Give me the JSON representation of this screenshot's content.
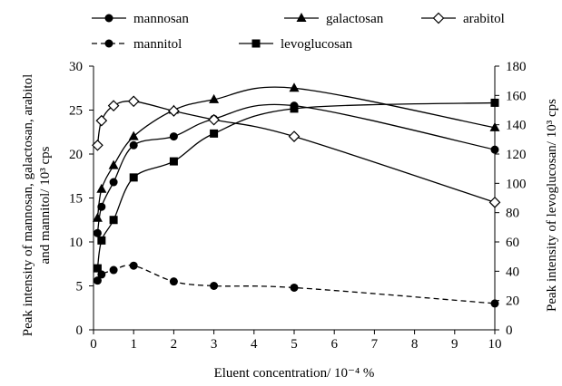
{
  "chart_data": {
    "type": "line",
    "xlabel": "Eluent concentration/ 10⁻⁴ %",
    "ylabel_left": [
      "Peak intensity of mannosan, galactosan, arabitol",
      "and mannitol/ 10³ cps"
    ],
    "ylabel_right": "Peak intensity of levoglucosan/ 10³ cps",
    "xlim": [
      0,
      10
    ],
    "ylim_left": [
      0,
      30
    ],
    "ylim_right": [
      0,
      180
    ],
    "x_ticks": [
      "0",
      "1",
      "2",
      "3",
      "4",
      "5",
      "6",
      "7",
      "8",
      "9",
      "10"
    ],
    "y_ticks_left": [
      "0",
      "5",
      "10",
      "15",
      "20",
      "25",
      "30"
    ],
    "y_ticks_right": [
      "0",
      "20",
      "40",
      "60",
      "80",
      "100",
      "120",
      "140",
      "160",
      "180"
    ],
    "grid": false,
    "legend_position": "top",
    "series": [
      {
        "name": "mannosan",
        "axis": "left",
        "marker": "circle",
        "line": "solid",
        "smooth": true,
        "x": [
          0.1,
          0.2,
          0.5,
          1,
          2,
          3,
          5,
          10
        ],
        "y": [
          11.0,
          14.0,
          16.8,
          21.0,
          22.0,
          24.0,
          25.5,
          20.5
        ]
      },
      {
        "name": "galactosan",
        "axis": "left",
        "marker": "triangle",
        "line": "solid",
        "smooth": true,
        "x": [
          0.1,
          0.2,
          0.5,
          1,
          2,
          3,
          5,
          10
        ],
        "y": [
          12.7,
          16.0,
          18.7,
          22.0,
          25.0,
          26.2,
          27.5,
          23.0
        ]
      },
      {
        "name": "arabitol",
        "axis": "left",
        "marker": "diamond-open",
        "line": "solid",
        "smooth": true,
        "x": [
          0.1,
          0.2,
          0.5,
          1,
          2,
          3,
          5,
          10
        ],
        "y": [
          21.0,
          23.8,
          25.5,
          26.0,
          24.9,
          23.9,
          22.0,
          14.5
        ]
      },
      {
        "name": "mannitol",
        "axis": "left",
        "marker": "circle",
        "line": "dashed",
        "smooth": true,
        "x": [
          0.1,
          0.2,
          0.5,
          1,
          2,
          3,
          5,
          10
        ],
        "y": [
          5.6,
          6.3,
          6.8,
          7.3,
          5.5,
          5.0,
          4.8,
          3.0
        ]
      },
      {
        "name": "levoglucosan",
        "axis": "right",
        "marker": "square",
        "line": "solid",
        "smooth": true,
        "x": [
          0.1,
          0.2,
          0.5,
          1,
          2,
          3,
          5,
          10
        ],
        "y": [
          42,
          61,
          75,
          104,
          115,
          134,
          151,
          155
        ]
      }
    ]
  }
}
